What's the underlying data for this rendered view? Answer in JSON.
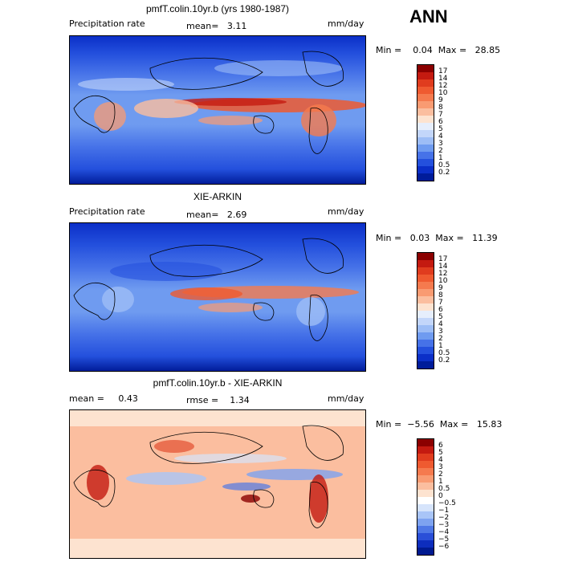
{
  "season": "ANN",
  "panels": [
    {
      "title": "pmfT.colin.10yr.b (yrs 1980-1987)",
      "left_label": "Precipitation rate",
      "mid_label": "mean=   3.11",
      "unit": "mm/day",
      "minmax": "Min =    0.04  Max =   28.85",
      "colorbar": {
        "labels": [
          "17",
          "14",
          "12",
          "10",
          "9",
          "8",
          "7",
          "6",
          "5",
          "4",
          "3",
          "2",
          "1",
          "0.5",
          "0.2"
        ],
        "colors": [
          "#8b0000",
          "#c41a10",
          "#e03c1e",
          "#ef5a30",
          "#f57a4e",
          "#f99b72",
          "#fbbe9f",
          "#fde3d0",
          "#e6eefc",
          "#c3d6fa",
          "#9dbdf6",
          "#6f9bf0",
          "#4672e8",
          "#2450dd",
          "#0b2fc8",
          "#001c9a"
        ]
      }
    },
    {
      "title": "XIE-ARKIN",
      "left_label": "Precipitation rate",
      "mid_label": "mean=   2.69",
      "unit": "mm/day",
      "minmax": "Min =   0.03  Max =   11.39",
      "colorbar": {
        "labels": [
          "17",
          "14",
          "12",
          "10",
          "9",
          "8",
          "7",
          "6",
          "5",
          "4",
          "3",
          "2",
          "1",
          "0.5",
          "0.2"
        ],
        "colors": [
          "#8b0000",
          "#c41a10",
          "#e03c1e",
          "#ef5a30",
          "#f57a4e",
          "#f99b72",
          "#fbbe9f",
          "#fde3d0",
          "#e6eefc",
          "#c3d6fa",
          "#9dbdf6",
          "#6f9bf0",
          "#4672e8",
          "#2450dd",
          "#0b2fc8",
          "#001c9a"
        ]
      }
    },
    {
      "title": "pmfT.colin.10yr.b - XIE-ARKIN",
      "left_label": "mean =     0.43",
      "mid_label": "rmse =    1.34",
      "unit": "mm/day",
      "minmax": "Min =  −5.56  Max =   15.83",
      "colorbar": {
        "labels": [
          "6",
          "5",
          "4",
          "3",
          "2",
          "1",
          "0.5",
          "0",
          "−0.5",
          "−1",
          "−2",
          "−3",
          "−4",
          "−5",
          "−6"
        ],
        "colors": [
          "#8b0000",
          "#c41a10",
          "#e03c1e",
          "#ef5a30",
          "#f57a4e",
          "#f99b72",
          "#fbbe9f",
          "#fde3d0",
          "#ffffff",
          "#d6e4fb",
          "#a9c5f7",
          "#7ea3f0",
          "#4f78e6",
          "#2a4fd8",
          "#0d2dbd",
          "#001a90"
        ]
      }
    }
  ]
}
